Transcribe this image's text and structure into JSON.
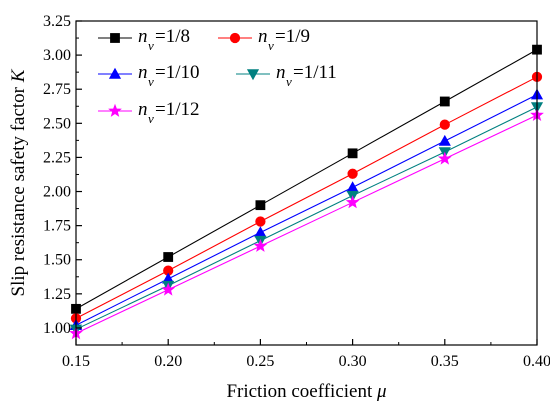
{
  "chart_data": {
    "type": "line",
    "xlabel": "Friction coefficient μ",
    "xlabel_main": "Friction coefficient ",
    "xlabel_symbol": "μ",
    "ylabel": "Slip resistance safety factor K",
    "ylabel_main": "Slip resistance safety factor ",
    "ylabel_symbol": "K",
    "xlim": [
      0.15,
      0.4
    ],
    "ylim": [
      0.875,
      3.25
    ],
    "x_ticks": [
      "0.15",
      "0.20",
      "0.25",
      "0.30",
      "0.35",
      "0.40"
    ],
    "y_ticks": [
      "1.00",
      "1.25",
      "1.50",
      "1.75",
      "2.00",
      "2.25",
      "2.50",
      "2.75",
      "3.00",
      "3.25"
    ],
    "x": [
      0.15,
      0.2,
      0.25,
      0.3,
      0.35,
      0.4
    ],
    "legend_position": "top-left",
    "grid": false,
    "series": [
      {
        "name": "nv=1/8",
        "symbol": "n",
        "sub": "v",
        "ratio": "=1/8",
        "marker": "square",
        "color": "#000000",
        "values": [
          1.14,
          1.52,
          1.9,
          2.28,
          2.66,
          3.04
        ]
      },
      {
        "name": "nv=1/9",
        "symbol": "n",
        "sub": "v",
        "ratio": "=1/9",
        "marker": "circle",
        "color": "#ff0000",
        "values": [
          1.07,
          1.42,
          1.78,
          2.13,
          2.49,
          2.84
        ]
      },
      {
        "name": "nv=1/10",
        "symbol": "n",
        "sub": "v",
        "ratio": "=1/10",
        "marker": "triangle-up",
        "color": "#0000ff",
        "values": [
          1.02,
          1.36,
          1.7,
          2.03,
          2.37,
          2.71
        ]
      },
      {
        "name": "nv=1/11",
        "symbol": "n",
        "sub": "v",
        "ratio": "=1/11",
        "marker": "triangle-down",
        "color": "#008080",
        "values": [
          0.99,
          1.31,
          1.64,
          1.97,
          2.29,
          2.62
        ]
      },
      {
        "name": "nv=1/12",
        "symbol": "n",
        "sub": "v",
        "ratio": "=1/12",
        "marker": "star",
        "color": "#ff00ff",
        "values": [
          0.96,
          1.28,
          1.6,
          1.92,
          2.24,
          2.56
        ]
      }
    ]
  }
}
